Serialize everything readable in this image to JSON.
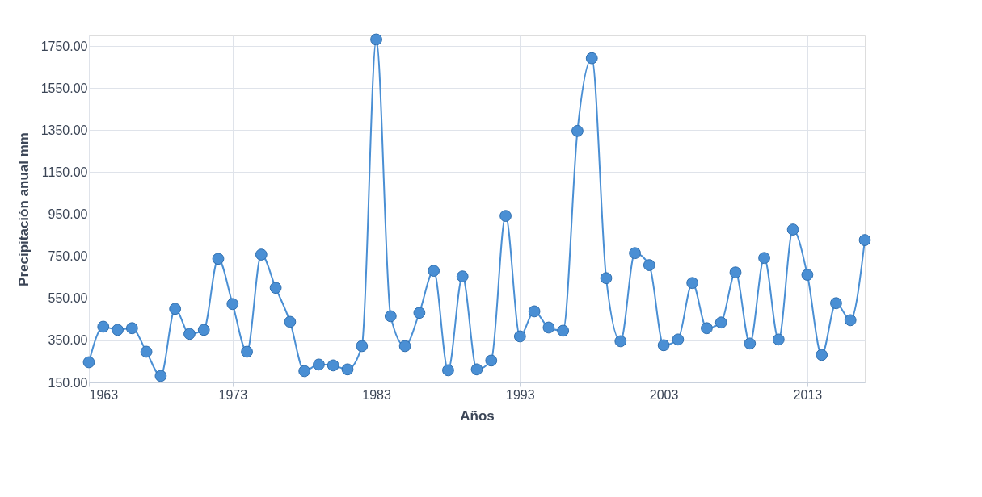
{
  "chart_data": {
    "type": "line",
    "xlabel": "Años",
    "ylabel": "Precipitación anual mm",
    "x": [
      1963,
      1964,
      1965,
      1966,
      1967,
      1968,
      1969,
      1970,
      1971,
      1972,
      1973,
      1974,
      1975,
      1976,
      1977,
      1978,
      1979,
      1980,
      1981,
      1982,
      1983,
      1984,
      1985,
      1986,
      1987,
      1988,
      1989,
      1990,
      1991,
      1992,
      1993,
      1994,
      1995,
      1996,
      1997,
      1998,
      1999,
      2000,
      2001,
      2002,
      2003,
      2004,
      2005,
      2006,
      2007,
      2008,
      2009,
      2010,
      2011,
      2012,
      2013,
      2014,
      2015,
      2016,
      2017
    ],
    "series": [
      {
        "color": "#4a8fd4",
        "values": [
          246,
          415,
          400,
          408,
          296,
          181,
          500,
          381,
          400,
          738,
          523,
          296,
          758,
          600,
          438,
          204,
          235,
          231,
          212,
          323,
          1781,
          465,
          323,
          481,
          681,
          208,
          654,
          212,
          254,
          942,
          369,
          488,
          411,
          396,
          1346,
          1692,
          646,
          346,
          765,
          708,
          327,
          354,
          623,
          408,
          435,
          673,
          335,
          742,
          354,
          877,
          662,
          281,
          527,
          446,
          827
        ]
      }
    ],
    "xlim": [
      1963,
      2017
    ],
    "xticks": [
      1963,
      1973,
      1983,
      1993,
      2003,
      2013
    ],
    "ylim": [
      150,
      1800
    ],
    "yticks": [
      {
        "value": 150,
        "label": "150.00"
      },
      {
        "value": 350,
        "label": "350.00"
      },
      {
        "value": 550,
        "label": "550.00"
      },
      {
        "value": 750,
        "label": "750.00"
      },
      {
        "value": 950,
        "label": "950.00"
      },
      {
        "value": 1150,
        "label": "1150.00"
      },
      {
        "value": 1350,
        "label": "1350.00"
      },
      {
        "value": 1550,
        "label": "1550.00"
      },
      {
        "value": 1750,
        "label": "1750.00"
      }
    ],
    "grid": true,
    "marker": "circle",
    "line_style": "solid"
  }
}
